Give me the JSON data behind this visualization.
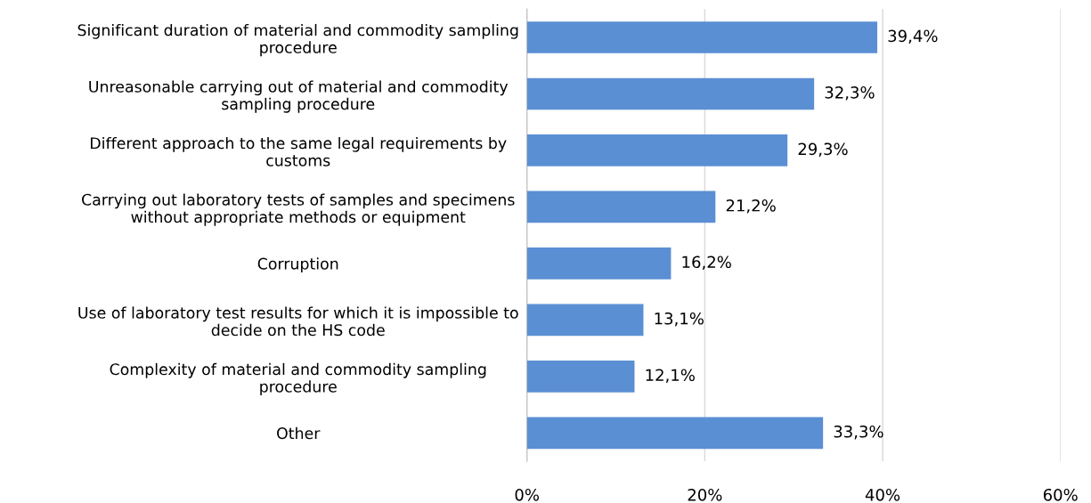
{
  "chart_data": {
    "type": "bar",
    "orientation": "horizontal",
    "categories": [
      "Significant duration of material and commodity sampling\nprocedure",
      "Unreasonable carrying out of material and commodity\nsampling procedure",
      "Different approach to the same legal requirements by\ncustoms",
      "Carrying out laboratory tests of samples and specimens\nwithout appropriate methods or equipment",
      "Corruption",
      "Use of laboratory test results for which it is impossible to\ndecide on the HS code",
      "Complexity of material and commodity sampling\nprocedure",
      "Other"
    ],
    "values": [
      39.4,
      32.3,
      29.3,
      21.2,
      16.2,
      13.1,
      12.1,
      33.3
    ],
    "value_labels": [
      "39,4%",
      "32,3%",
      "29,3%",
      "21,2%",
      "16,2%",
      "13,1%",
      "12,1%",
      "33,3%"
    ],
    "color": "#5b8fd4",
    "xlim": [
      0,
      60
    ],
    "xticks": [
      {
        "value": 0,
        "label": "0%"
      },
      {
        "value": 20,
        "label": "20%"
      },
      {
        "value": 40,
        "label": "40%"
      },
      {
        "value": 60,
        "label": "60%"
      }
    ],
    "grid": "x"
  }
}
